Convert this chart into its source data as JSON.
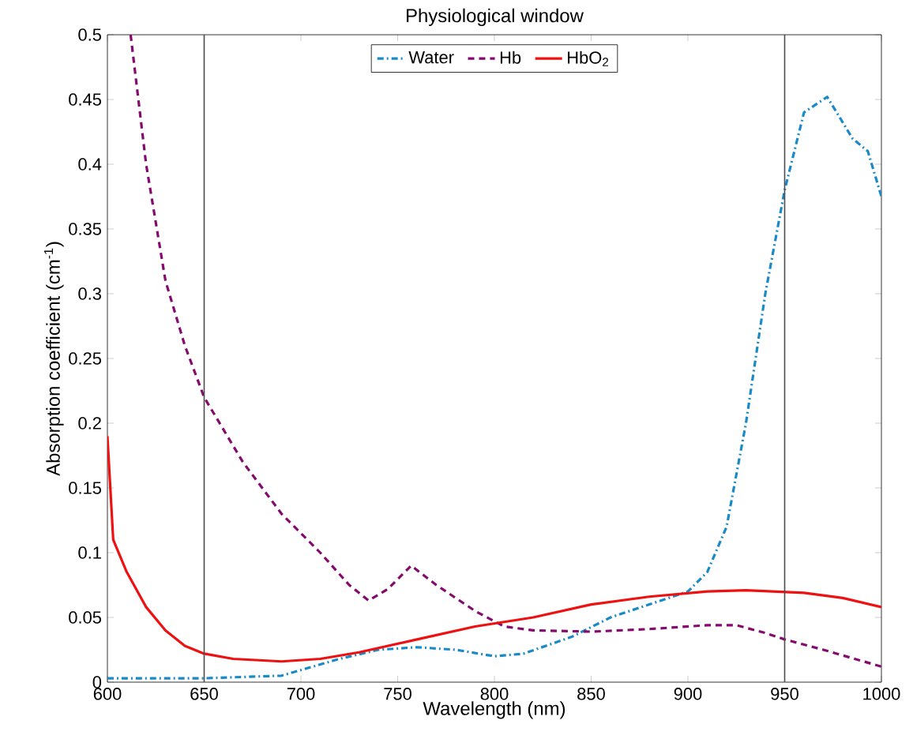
{
  "chart_data": {
    "type": "line",
    "title": "Physiological window",
    "xlabel": "Wavelength (nm)",
    "ylabel": "Absorption coefficient (cm$^{-1}$)",
    "xlim": [
      600,
      1000
    ],
    "xticks": [
      600,
      650,
      700,
      750,
      800,
      850,
      900,
      950,
      1000
    ],
    "ylim": [
      0,
      0.5
    ],
    "yticks": [
      0,
      0.05,
      0.1,
      0.15,
      0.2,
      0.25,
      0.3,
      0.35,
      0.4,
      0.45,
      0.5
    ],
    "grid": false,
    "legend": "top",
    "marker": "none",
    "ref_lines": [
      {
        "axis": "x",
        "value": 650,
        "color": "#4d4d4d"
      },
      {
        "axis": "x",
        "value": 950,
        "color": "#4d4d4d"
      }
    ],
    "series": [
      {
        "name": "Water",
        "color": "#1a8ac6",
        "line_style": "dashdot",
        "x": [
          600,
          650,
          690,
          720,
          740,
          760,
          780,
          800,
          815,
          840,
          860,
          880,
          900,
          910,
          920,
          930,
          940,
          950,
          960,
          972,
          985,
          993,
          1000
        ],
        "values": [
          0.003,
          0.003,
          0.005,
          0.018,
          0.025,
          0.027,
          0.025,
          0.02,
          0.022,
          0.035,
          0.05,
          0.06,
          0.07,
          0.085,
          0.12,
          0.2,
          0.3,
          0.38,
          0.44,
          0.452,
          0.42,
          0.41,
          0.375
        ]
      },
      {
        "name": "Hb",
        "color": "#850a6e",
        "line_style": "dashed",
        "x": [
          612,
          620,
          630,
          640,
          650,
          670,
          690,
          710,
          725,
          735,
          745,
          757,
          770,
          790,
          805,
          820,
          850,
          880,
          910,
          925,
          940,
          950,
          970,
          1000
        ],
        "values": [
          0.5,
          0.4,
          0.31,
          0.26,
          0.22,
          0.17,
          0.13,
          0.1,
          0.075,
          0.063,
          0.072,
          0.09,
          0.075,
          0.055,
          0.043,
          0.04,
          0.039,
          0.041,
          0.044,
          0.044,
          0.038,
          0.033,
          0.025,
          0.012
        ]
      },
      {
        "name": "HbO$_{2}$",
        "color": "#ee1111",
        "line_style": "solid",
        "x": [
          600,
          603,
          610,
          620,
          630,
          640,
          650,
          665,
          690,
          710,
          730,
          760,
          790,
          820,
          850,
          880,
          910,
          930,
          960,
          980,
          1000
        ],
        "values": [
          0.19,
          0.11,
          0.085,
          0.058,
          0.04,
          0.028,
          0.022,
          0.018,
          0.016,
          0.018,
          0.023,
          0.033,
          0.043,
          0.05,
          0.06,
          0.066,
          0.07,
          0.071,
          0.069,
          0.065,
          0.058
        ]
      }
    ]
  }
}
